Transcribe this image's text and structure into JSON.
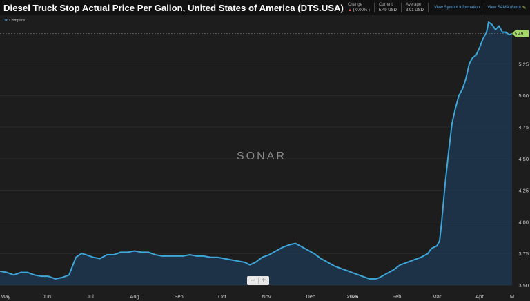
{
  "header": {
    "title": "Diesel Truck Stop Actual Price Per Gallon, United States of America (DTS.USA)",
    "change_label": "Change",
    "change_value": "( 0.00% )",
    "current_label": "Current",
    "current_value": "5.49 USD",
    "average_label": "Average",
    "average_value": "3.91 USD",
    "link_symbol_info": "View Symbol Information",
    "link_sama": "View SAMA (6mo)"
  },
  "legend": {
    "label": "Compare..."
  },
  "watermark": "SONAR",
  "zoom": {
    "minus": "−",
    "plus": "+"
  },
  "colors": {
    "line": "#3ea6d9",
    "fill": "#1e3a54",
    "background": "#1d1d1d",
    "last_badge": "#a5d86b"
  },
  "chart_data": {
    "type": "area",
    "y_ticks": [
      "5.25",
      "5.00",
      "4.75",
      "4.50",
      "4.25",
      "4.00",
      "3.75",
      "3.50"
    ],
    "ylim": [
      3.5,
      5.58
    ],
    "x_ticks": [
      "May",
      "Jun",
      "Jul",
      "Aug",
      "Sep",
      "Oct",
      "Nov",
      "Dec",
      "2026",
      "Feb",
      "Mar",
      "Apr",
      "M"
    ],
    "last_value_label": "5.49",
    "series": [
      {
        "values": [
          [
            0,
            3.61
          ],
          [
            10,
            3.6
          ],
          [
            20,
            3.58
          ],
          [
            30,
            3.6
          ],
          [
            40,
            3.6
          ],
          [
            50,
            3.58
          ],
          [
            60,
            3.57
          ],
          [
            70,
            3.57
          ],
          [
            80,
            3.55
          ],
          [
            90,
            3.56
          ],
          [
            100,
            3.58
          ],
          [
            105,
            3.65
          ],
          [
            110,
            3.72
          ],
          [
            118,
            3.75
          ],
          [
            125,
            3.74
          ],
          [
            135,
            3.72
          ],
          [
            145,
            3.71
          ],
          [
            155,
            3.74
          ],
          [
            165,
            3.74
          ],
          [
            175,
            3.76
          ],
          [
            185,
            3.76
          ],
          [
            195,
            3.77
          ],
          [
            205,
            3.76
          ],
          [
            215,
            3.76
          ],
          [
            225,
            3.74
          ],
          [
            235,
            3.73
          ],
          [
            245,
            3.73
          ],
          [
            255,
            3.73
          ],
          [
            265,
            3.73
          ],
          [
            275,
            3.74
          ],
          [
            285,
            3.73
          ],
          [
            295,
            3.73
          ],
          [
            305,
            3.72
          ],
          [
            315,
            3.72
          ],
          [
            325,
            3.71
          ],
          [
            335,
            3.7
          ],
          [
            345,
            3.69
          ],
          [
            355,
            3.68
          ],
          [
            362,
            3.66
          ],
          [
            370,
            3.68
          ],
          [
            380,
            3.72
          ],
          [
            390,
            3.74
          ],
          [
            400,
            3.77
          ],
          [
            410,
            3.8
          ],
          [
            420,
            3.82
          ],
          [
            428,
            3.83
          ],
          [
            435,
            3.81
          ],
          [
            445,
            3.78
          ],
          [
            455,
            3.75
          ],
          [
            465,
            3.71
          ],
          [
            475,
            3.68
          ],
          [
            485,
            3.65
          ],
          [
            495,
            3.63
          ],
          [
            505,
            3.61
          ],
          [
            515,
            3.59
          ],
          [
            525,
            3.57
          ],
          [
            535,
            3.55
          ],
          [
            545,
            3.55
          ],
          [
            550,
            3.56
          ],
          [
            560,
            3.59
          ],
          [
            570,
            3.62
          ],
          [
            580,
            3.66
          ],
          [
            590,
            3.68
          ],
          [
            600,
            3.7
          ],
          [
            610,
            3.72
          ],
          [
            620,
            3.75
          ],
          [
            625,
            3.79
          ],
          [
            633,
            3.81
          ],
          [
            637,
            3.85
          ],
          [
            640,
            4.0
          ],
          [
            645,
            4.3
          ],
          [
            650,
            4.55
          ],
          [
            655,
            4.78
          ],
          [
            660,
            4.9
          ],
          [
            665,
            5.0
          ],
          [
            670,
            5.05
          ],
          [
            675,
            5.13
          ],
          [
            680,
            5.25
          ],
          [
            685,
            5.3
          ],
          [
            690,
            5.32
          ],
          [
            695,
            5.38
          ],
          [
            700,
            5.45
          ],
          [
            705,
            5.5
          ],
          [
            708,
            5.58
          ],
          [
            713,
            5.56
          ],
          [
            718,
            5.52
          ],
          [
            723,
            5.55
          ],
          [
            728,
            5.5
          ],
          [
            733,
            5.5
          ],
          [
            738,
            5.48
          ],
          [
            742,
            5.49
          ]
        ]
      }
    ]
  }
}
